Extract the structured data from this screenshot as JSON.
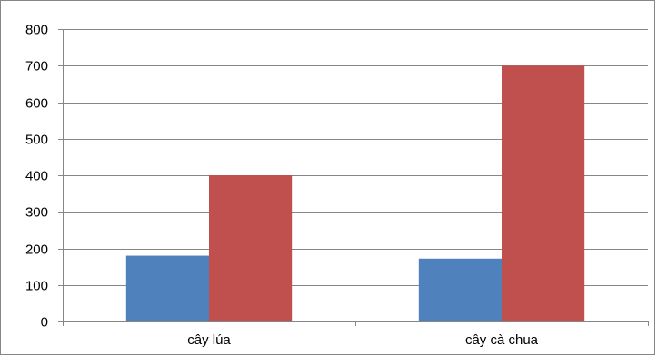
{
  "chart_data": {
    "type": "bar",
    "categories": [
      "cây lúa",
      "cây cà chua"
    ],
    "series": [
      {
        "values": [
          180,
          172
        ]
      },
      {
        "values": [
          400,
          700
        ]
      }
    ],
    "colors": [
      "#4F81BD",
      "#C0504D"
    ],
    "title": "",
    "xlabel": "",
    "ylabel": "",
    "ylim": [
      0,
      800
    ],
    "yticks": [
      "0",
      "100",
      "200",
      "300",
      "400",
      "500",
      "600",
      "700",
      "800"
    ],
    "grid": true,
    "legend": "none"
  }
}
